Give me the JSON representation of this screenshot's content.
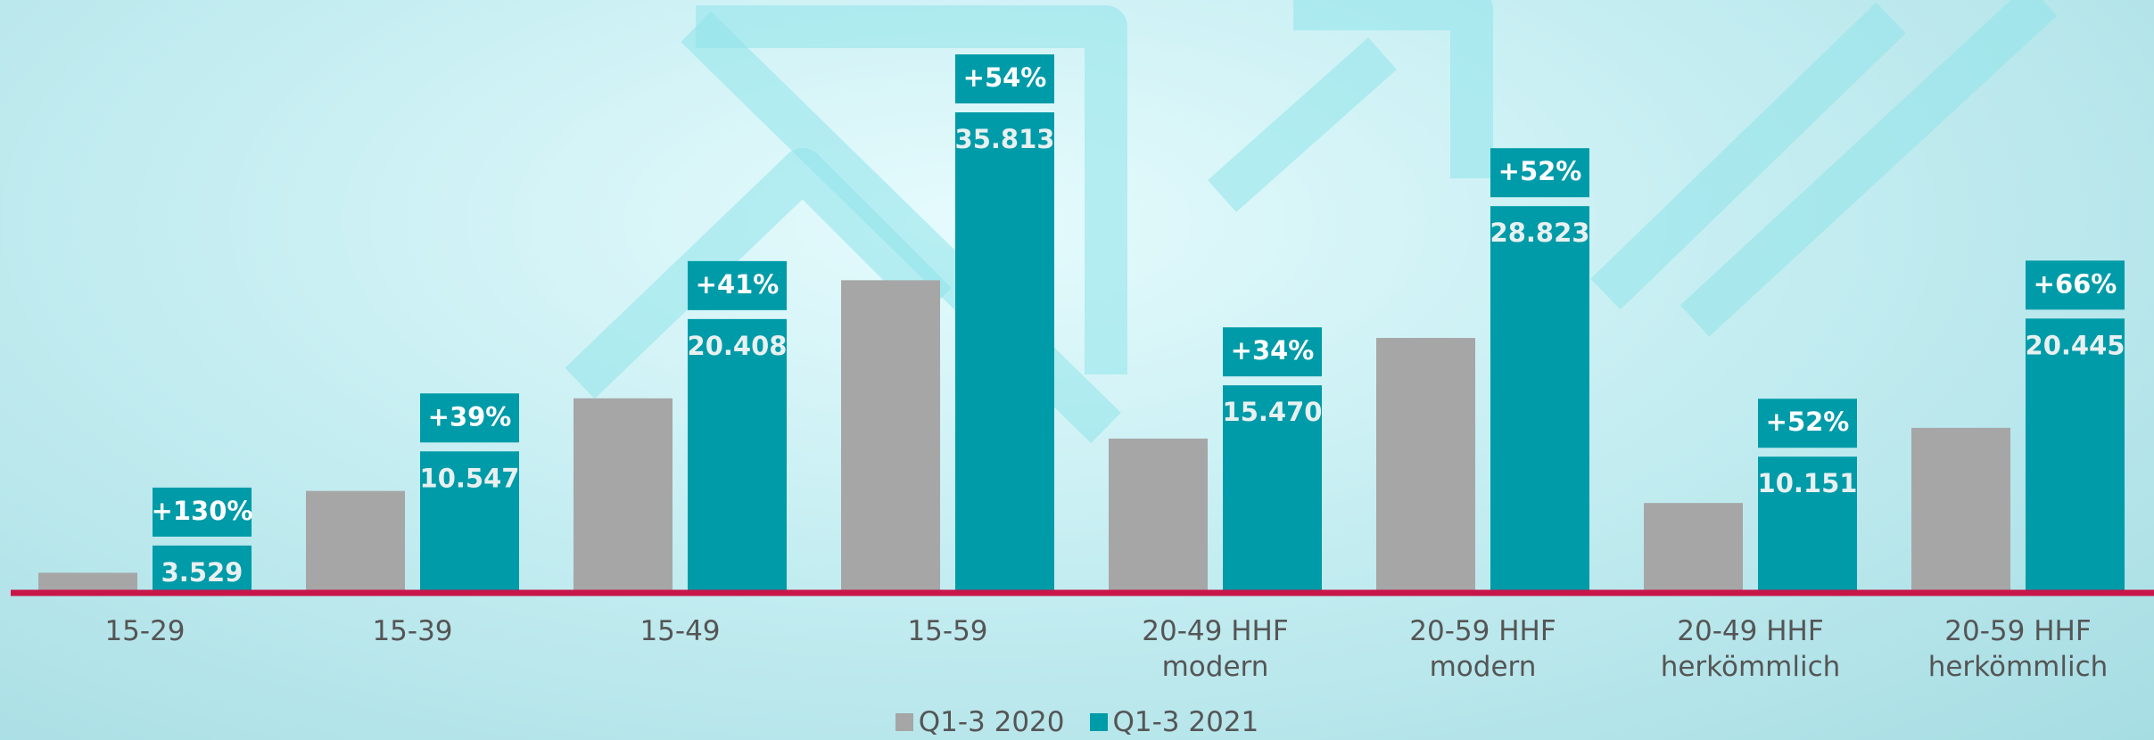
{
  "chart_data": {
    "type": "bar",
    "categories": [
      "15-29",
      "15-39",
      "15-49",
      "15-59",
      "20-49 HHF\nmodern",
      "20-59 HHF\nmodern",
      "20-49 HHF\nherkömmlich",
      "20-59 HHF\nherkömmlich"
    ],
    "series": [
      {
        "name": "Q1-3 2020",
        "color": "#a6a6a6",
        "values": [
          1500,
          7600,
          14500,
          23300,
          11500,
          19000,
          6700,
          12300
        ]
      },
      {
        "name": "Q1-3 2021",
        "color": "#009ba8",
        "values": [
          3529,
          10547,
          20408,
          35813,
          15470,
          28823,
          10151,
          20445
        ],
        "value_labels": [
          "3.529",
          "10.547",
          "20.408",
          "35.813",
          "15.470",
          "28.823",
          "10.151",
          "20.445"
        ],
        "change_labels": [
          "+130%",
          "+39%",
          "+41%",
          "+54%",
          "+34%",
          "+52%",
          "+52%",
          "+66%"
        ]
      }
    ],
    "baseline_color": "#c8164a"
  }
}
